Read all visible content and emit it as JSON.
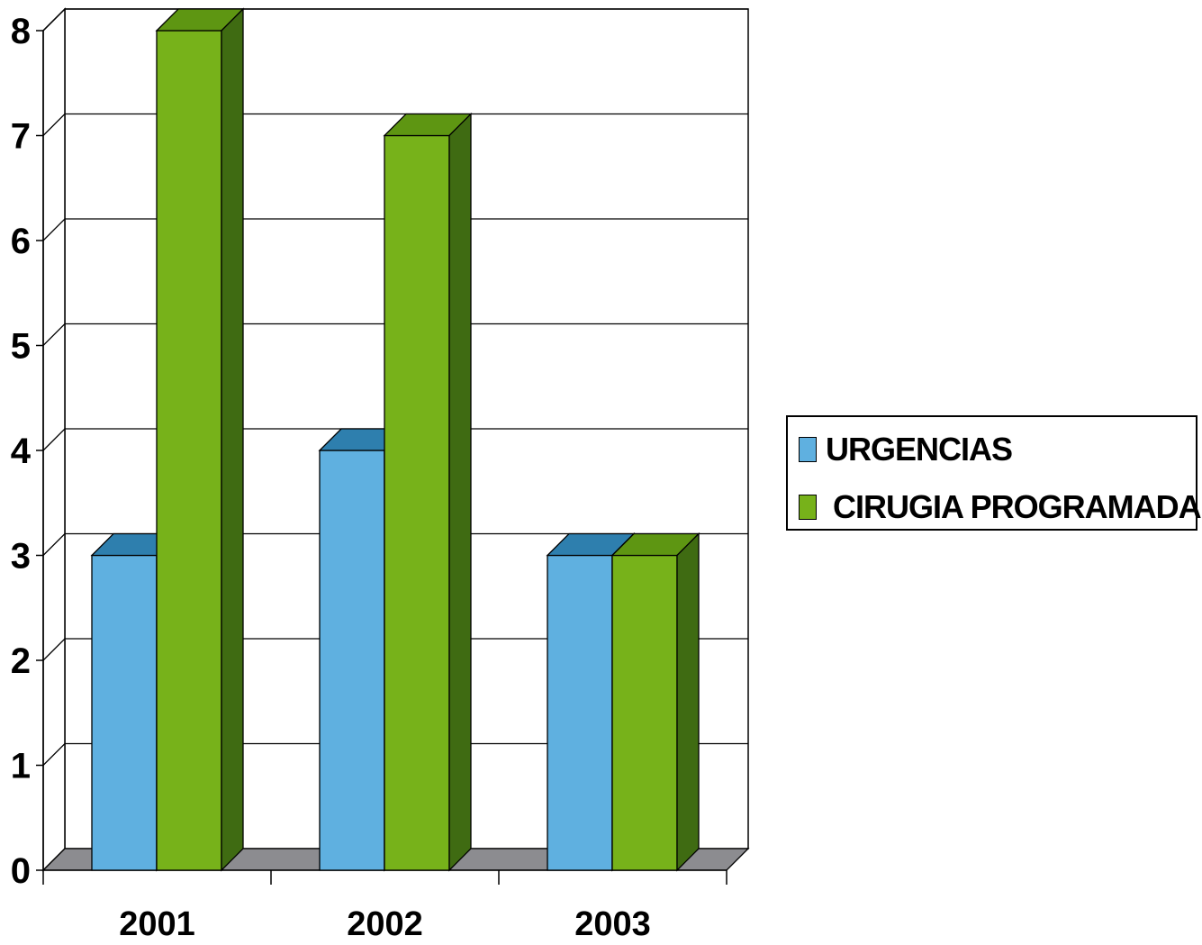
{
  "chart_data": {
    "type": "bar",
    "style": "3d-clustered-column",
    "title": "",
    "xlabel": "",
    "ylabel": "",
    "categories": [
      "2001",
      "2002",
      "2003"
    ],
    "ylim": [
      0,
      8
    ],
    "yticks": [
      "0",
      "1",
      "2",
      "3",
      "4",
      "5",
      "6",
      "7",
      "8"
    ],
    "grid": true,
    "legend_position": "right",
    "series": [
      {
        "name": "URGENCIAS",
        "values": [
          3,
          4,
          3
        ],
        "color": "#5fb0e0",
        "top_color": "#2e7fae",
        "side_color": "#2a6f9b"
      },
      {
        "name": "CIRUGIA PROGRAMADA",
        "values": [
          8,
          7,
          3
        ],
        "color": "#77b21a",
        "top_color": "#5e9612",
        "side_color": "#3f6b12"
      }
    ]
  }
}
